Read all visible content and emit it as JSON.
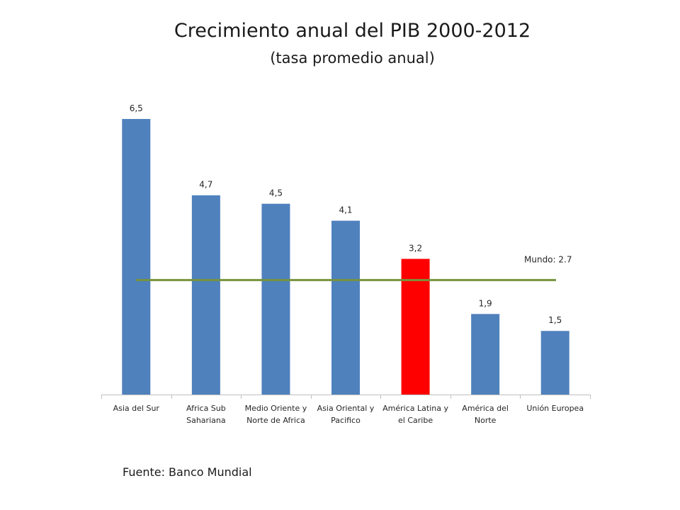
{
  "title": "Crecimiento anual del PIB 2000-2012",
  "subtitle": "(tasa promedio anual)",
  "source": "Fuente: Banco Mundial",
  "chart_data": {
    "type": "bar",
    "title": "Crecimiento anual del PIB 2000-2012",
    "subtitle": "(tasa promedio anual)",
    "categories": [
      [
        "Asia del Sur"
      ],
      [
        "Africa Sub",
        "Sahariana"
      ],
      [
        "Medio Oriente y",
        "Norte de Africa"
      ],
      [
        "Asia Oriental y",
        "Pacifico"
      ],
      [
        "América Latina y",
        "el Caribe"
      ],
      [
        "América del",
        "Norte"
      ],
      [
        "Unión Europea"
      ]
    ],
    "values": [
      6.5,
      4.7,
      4.5,
      4.1,
      3.2,
      1.9,
      1.5
    ],
    "value_labels": [
      "6,5",
      "4,7",
      "4,5",
      "4,1",
      "3,2",
      "1,9",
      "1,5"
    ],
    "highlight_index": 4,
    "colors": {
      "bar": "#4F81BD",
      "highlight": "#FF0000",
      "reference_line": "#77933C",
      "axis": "#BFBFBF"
    },
    "reference_line": {
      "label": "Mundo: 2.7",
      "value": 2.7
    },
    "ylim": [
      0,
      6.8
    ],
    "grid": false,
    "legend": "none",
    "xlabel": "",
    "ylabel": ""
  }
}
